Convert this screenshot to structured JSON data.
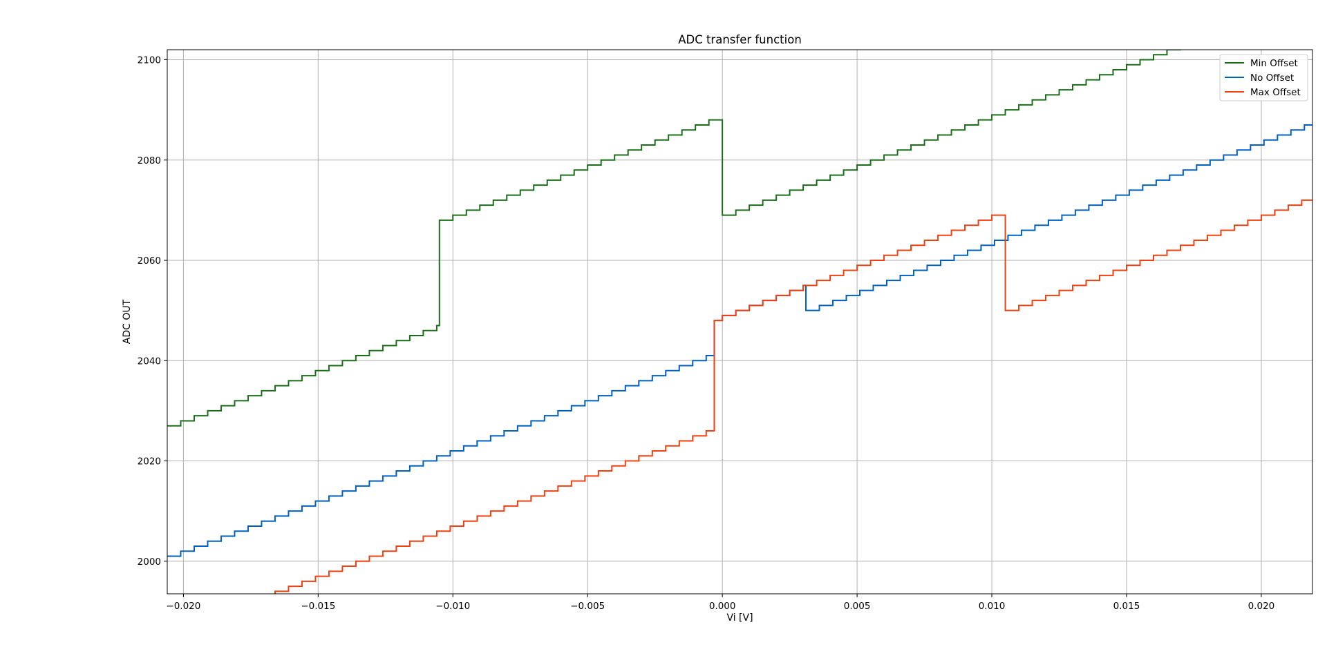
{
  "chart_data": {
    "type": "line",
    "title": "ADC transfer function",
    "xlabel": "Vi [V]",
    "ylabel": "ADC OUT",
    "xlim": [
      -0.0206,
      0.0219
    ],
    "ylim": [
      1993.5,
      2102
    ],
    "xticks": [
      -0.02,
      -0.015,
      -0.01,
      -0.005,
      0.0,
      0.005,
      0.01,
      0.015,
      0.02
    ],
    "xtick_labels": [
      "−0.020",
      "−0.015",
      "−0.010",
      "−0.005",
      "0.000",
      "0.005",
      "0.010",
      "0.015",
      "0.020"
    ],
    "yticks": [
      2000,
      2020,
      2040,
      2060,
      2080,
      2100
    ],
    "ytick_labels": [
      "2000",
      "2020",
      "2040",
      "2060",
      "2080",
      "2100"
    ],
    "grid": true,
    "legend_position": "top-right",
    "step_lsb_volts": 0.0005,
    "series": [
      {
        "name": "Min Offset",
        "color": "#1a6e1a",
        "segments": [
          {
            "x_start": -0.0206,
            "x_end": -0.0105,
            "y_start": 2027
          },
          {
            "x_start": -0.0105,
            "x_end": 0.0,
            "y_start": 2068
          },
          {
            "x_start": 0.0,
            "x_end": 0.0219,
            "y_start": 2069
          }
        ]
      },
      {
        "name": "No Offset",
        "color": "#0060bf",
        "segments": [
          {
            "x_start": -0.0206,
            "x_end": -0.0003,
            "y_start": 2001
          },
          {
            "x_start": -0.0003,
            "x_end": 0.0,
            "y_start": 2048
          },
          {
            "x_start": 0.0,
            "x_end": 0.0031,
            "y_start": 2049
          },
          {
            "x_start": 0.0031,
            "x_end": 0.0219,
            "y_start": 2050
          }
        ]
      },
      {
        "name": "Max Offset",
        "color": "#f04010",
        "segments": [
          {
            "x_start": -0.0206,
            "x_end": -0.0003,
            "y_start": 1986
          },
          {
            "x_start": -0.0003,
            "x_end": 0.0,
            "y_start": 2048
          },
          {
            "x_start": 0.0,
            "x_end": 0.0105,
            "y_start": 2049
          },
          {
            "x_start": 0.0105,
            "x_end": 0.0219,
            "y_start": 2050
          }
        ]
      }
    ]
  }
}
